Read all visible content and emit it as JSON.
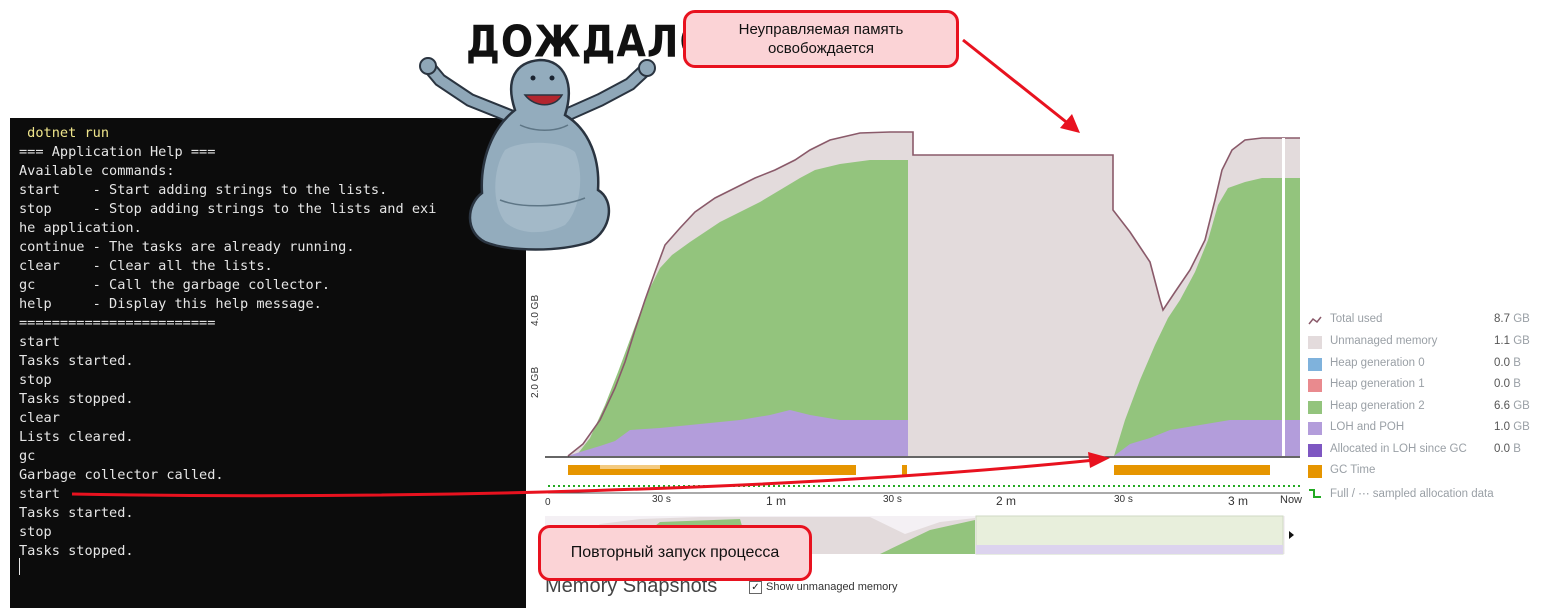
{
  "terminal": {
    "lines": [
      " dotnet run",
      "=== Application Help ===",
      "Available commands:",
      "start    - Start adding strings to the lists.",
      "stop     - Stop adding strings to the lists and exi",
      "he application.",
      "continue - The tasks are already running.",
      "clear    - Clear all the lists.",
      "gc       - Call the garbage collector.",
      "help     - Display this help message.",
      "========================",
      "start",
      "Tasks started.",
      "stop",
      "Tasks stopped.",
      "clear",
      "Lists cleared.",
      "gc",
      "Garbage collector called.",
      "start",
      "Tasks started.",
      "stop",
      "Tasks stopped."
    ],
    "prompt_color": "#f0e68c"
  },
  "sticker": {
    "title": "ДОЖДАЛСЯ",
    "character_icon": "happy-creature-arms-up"
  },
  "callouts": {
    "top": "Неуправляемая память освобождается",
    "bottom": "Повторный запуск процесса",
    "accent": "#e8121f"
  },
  "memory_chart": {
    "y_ticks": [
      "2.0 GB",
      "4.0 GB"
    ],
    "x_ticks": [
      "0",
      "30 s",
      "1 m",
      "30 s",
      "2 m",
      "30 s",
      "3 m",
      "Now"
    ],
    "legend": [
      {
        "label": "Total used",
        "value": "8.7",
        "unit": "GB",
        "color": "#8a5a6a",
        "icon": "line-icon"
      },
      {
        "label": "Unmanaged memory",
        "value": "1.1",
        "unit": "GB",
        "color": "#e3dbdc"
      },
      {
        "label": "Heap generation 0",
        "value": "0.0",
        "unit": "B",
        "color": "#7fb2dc"
      },
      {
        "label": "Heap generation 1",
        "value": "0.0",
        "unit": "B",
        "color": "#e98a8e"
      },
      {
        "label": "Heap generation 2",
        "value": "6.6",
        "unit": "GB",
        "color": "#93c47d"
      },
      {
        "label": "LOH and POH",
        "value": "1.0",
        "unit": "GB",
        "color": "#b39ddb"
      },
      {
        "label": "Allocated in LOH since GC",
        "value": "0.0",
        "unit": "B",
        "color": "#7e57c2"
      },
      {
        "label": "GC Time",
        "value": "",
        "unit": "",
        "color": "#e69500"
      },
      {
        "label": "Full / ⋯ sampled allocation data",
        "value": "",
        "unit": "",
        "color": "#22aa22",
        "icon": "dotted-line-icon"
      }
    ],
    "colors": {
      "total": "#8a5a6a",
      "unmanaged": "#e3dbdc",
      "gen2": "#93c47d",
      "loh": "#b39ddb",
      "gc": "#e69500",
      "sampled": "#22aa22"
    }
  },
  "snapshots": {
    "title": "Memory Snapshots",
    "checkbox_label": "Show unmanaged memory",
    "checked": true
  }
}
